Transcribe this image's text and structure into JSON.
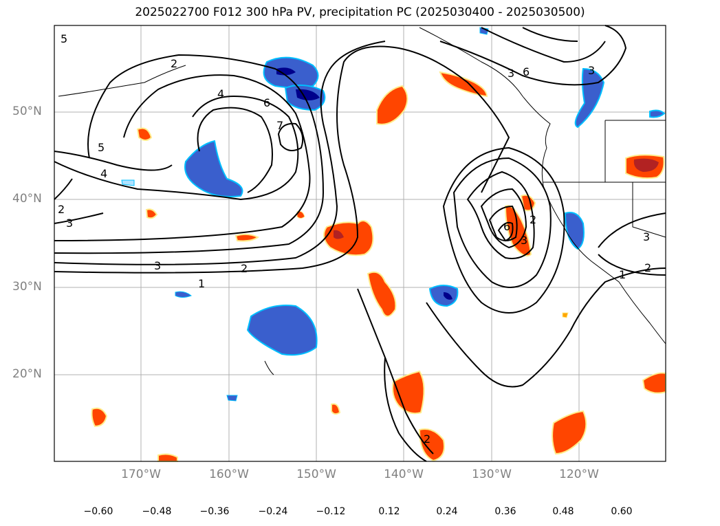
{
  "title": "2025022700 F012 300 hPa PV, precipitation PC (2025030400 - 2025030500)",
  "lat_labels": [
    "50°N",
    "40°N",
    "30°N",
    "20°N"
  ],
  "lon_labels": [
    "170°W",
    "160°W",
    "150°W",
    "140°W",
    "130°W",
    "120°W"
  ],
  "colorbar": {
    "ticks": [
      "−0.60",
      "−0.48",
      "−0.36",
      "−0.24",
      "−0.12",
      "0.12",
      "0.24",
      "0.36",
      "0.48",
      "0.60"
    ],
    "colors": [
      "#9932cc",
      "#00008b",
      "#3a5fcd",
      "#00bfff",
      "#b0e2ff",
      "#ffffff",
      "#ffec8b",
      "#ffa500",
      "#ff4500",
      "#b22222",
      "#ff88aa"
    ],
    "extend": "both"
  },
  "colors": {
    "grid": "#b0b0b0",
    "contour": "#000000",
    "axis_label": "#808080"
  },
  "contour_labels": [
    "5",
    "2",
    "4",
    "6",
    "7",
    "5",
    "4",
    "2",
    "3",
    "3",
    "2",
    "1",
    "2",
    "3",
    "6",
    "6",
    "3",
    "2",
    "1",
    "2",
    "3",
    "3",
    "5",
    "2",
    "2",
    "2"
  ]
}
